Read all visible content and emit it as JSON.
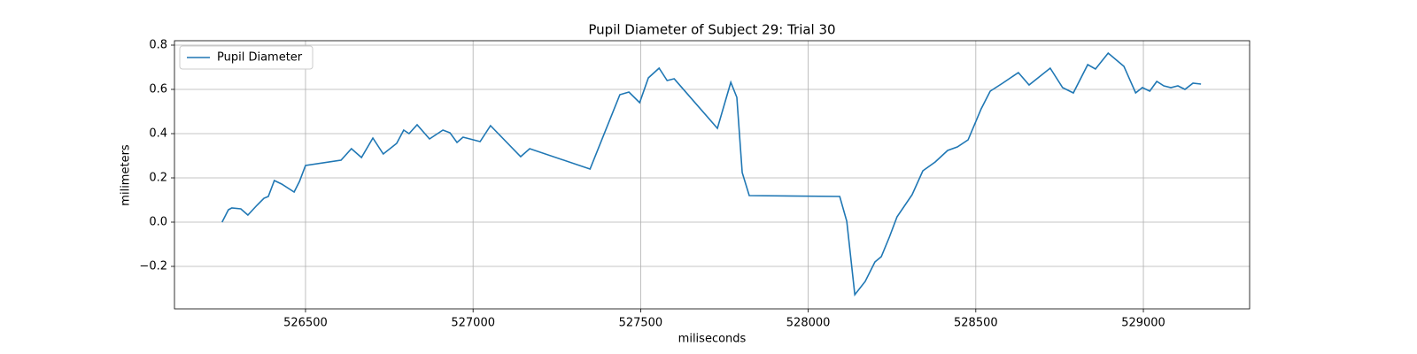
{
  "chart_data": {
    "type": "line",
    "title": "Pupil Diameter of Subject 29: Trial 30",
    "x_label": "miliseconds",
    "y_label": "milimeters",
    "x": [
      526251,
      526270,
      526280,
      526307,
      526328,
      526355,
      526376,
      526389,
      526407,
      526429,
      526466,
      526482,
      526500,
      526606,
      526637,
      526667,
      526701,
      526732,
      526772,
      526793,
      526809,
      526833,
      526870,
      526910,
      526931,
      526952,
      526970,
      527021,
      527052,
      527142,
      527169,
      527349,
      527438,
      527465,
      527497,
      527523,
      527555,
      527579,
      527600,
      527729,
      527769,
      527787,
      527803,
      527824,
      528094,
      528115,
      528139,
      528170,
      528199,
      528218,
      528242,
      528265,
      528310,
      528342,
      528379,
      528416,
      528445,
      528477,
      528516,
      528543,
      528580,
      528627,
      528659,
      528722,
      528759,
      528791,
      528834,
      528857,
      528895,
      528942,
      528977,
      528997,
      529019,
      529040,
      529061,
      529082,
      529103,
      529124,
      529148,
      529172
    ],
    "series": [
      {
        "name": "Pupil Diameter",
        "color": "#1f77b4",
        "values": [
          0,
          0.056,
          0.064,
          0.06,
          0.032,
          0.076,
          0.108,
          0.116,
          0.188,
          0.172,
          0.136,
          0.184,
          0.256,
          0.28,
          0.332,
          0.292,
          0.38,
          0.308,
          0.356,
          0.416,
          0.4,
          0.44,
          0.376,
          0.416,
          0.404,
          0.36,
          0.384,
          0.364,
          0.436,
          0.296,
          0.332,
          0.24,
          0.576,
          0.588,
          0.54,
          0.652,
          0.696,
          0.64,
          0.648,
          0.424,
          0.632,
          0.564,
          0.224,
          0.12,
          0.116,
          0.004,
          -0.328,
          -0.268,
          -0.18,
          -0.156,
          -0.068,
          0.024,
          0.124,
          0.232,
          0.272,
          0.324,
          0.34,
          0.372,
          0.512,
          0.592,
          0.628,
          0.676,
          0.62,
          0.696,
          0.608,
          0.584,
          0.712,
          0.692,
          0.764,
          0.704,
          0.584,
          0.608,
          0.592,
          0.636,
          0.616,
          0.608,
          0.616,
          0.6,
          0.628,
          0.624
        ]
      }
    ],
    "xlim": [
      526109,
      529317
    ],
    "xticks": [
      526500,
      527000,
      527500,
      528000,
      528500,
      529000
    ],
    "ylim": [
      -0.392,
      0.82
    ],
    "yticks": [
      {
        "value": -0.2,
        "label": "−0.2"
      },
      {
        "value": 0,
        "label": "0.0"
      },
      0.2,
      0.4,
      0.6,
      0.8
    ],
    "grid": true,
    "legend": "upper left"
  }
}
